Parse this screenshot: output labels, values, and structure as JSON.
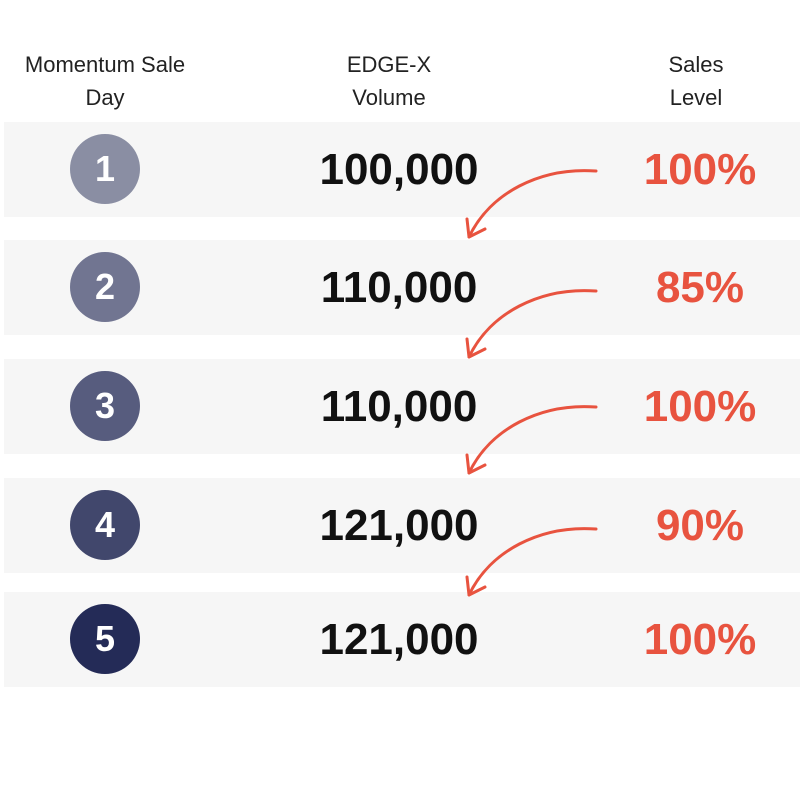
{
  "headers": {
    "day": [
      "Momentum Sale",
      "Day"
    ],
    "volume": [
      "EDGE-X",
      "Volume"
    ],
    "level": [
      "Sales",
      "Level"
    ]
  },
  "rows": [
    {
      "day": "1",
      "volume": "100,000",
      "level": "100%",
      "circle_color": "#8a8ea3"
    },
    {
      "day": "2",
      "volume": "110,000",
      "level": "85%",
      "circle_color": "#717591"
    },
    {
      "day": "3",
      "volume": "110,000",
      "level": "100%",
      "circle_color": "#575c7e"
    },
    {
      "day": "4",
      "volume": "121,000",
      "level": "90%",
      "circle_color": "#41476c"
    },
    {
      "day": "5",
      "volume": "121,000",
      "level": "100%",
      "circle_color": "#242b57"
    }
  ],
  "colors": {
    "accent": "#e8533f",
    "row_background": "#f6f6f6",
    "text": "#111111"
  },
  "icons": {
    "transition_arrow": "curved-arrow-icon"
  }
}
